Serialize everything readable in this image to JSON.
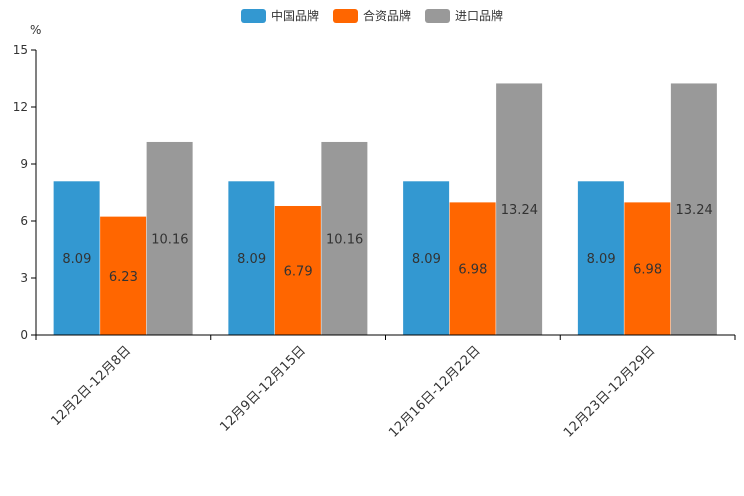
{
  "chart_data": {
    "type": "bar",
    "title": "",
    "unit": "%",
    "xlabel": "",
    "ylabel": "%",
    "ylim": [
      0,
      15
    ],
    "yticks": [
      0,
      3,
      6,
      9,
      12,
      15
    ],
    "categories": [
      "12月2日-12月8日",
      "12月9日-12月15日",
      "12月16日-12月22日",
      "12月23日-12月29日"
    ],
    "series": [
      {
        "name": "中国品牌",
        "color": "#3398d1",
        "values": [
          8.09,
          8.09,
          8.09,
          8.09
        ]
      },
      {
        "name": "合资品牌",
        "color": "#ff6600",
        "values": [
          6.23,
          6.79,
          6.98,
          6.98
        ]
      },
      {
        "name": "进口品牌",
        "color": "#999999",
        "values": [
          10.16,
          10.16,
          13.24,
          13.24
        ]
      }
    ],
    "legend_position": "top-center",
    "grid": false
  }
}
